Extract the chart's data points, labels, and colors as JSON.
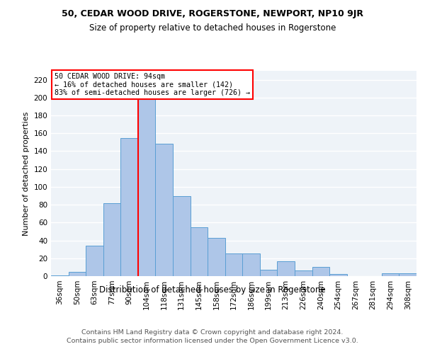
{
  "title1": "50, CEDAR WOOD DRIVE, ROGERSTONE, NEWPORT, NP10 9JR",
  "title2": "Size of property relative to detached houses in Rogerstone",
  "xlabel": "Distribution of detached houses by size in Rogerstone",
  "ylabel": "Number of detached properties",
  "footer1": "Contains HM Land Registry data © Crown copyright and database right 2024.",
  "footer2": "Contains public sector information licensed under the Open Government Licence v3.0.",
  "bin_labels": [
    "36sqm",
    "50sqm",
    "63sqm",
    "77sqm",
    "90sqm",
    "104sqm",
    "118sqm",
    "131sqm",
    "145sqm",
    "158sqm",
    "172sqm",
    "186sqm",
    "199sqm",
    "213sqm",
    "226sqm",
    "240sqm",
    "254sqm",
    "267sqm",
    "281sqm",
    "294sqm",
    "308sqm"
  ],
  "bar_values": [
    1,
    5,
    34,
    82,
    155,
    200,
    148,
    90,
    55,
    43,
    25,
    25,
    7,
    17,
    6,
    10,
    2,
    0,
    0,
    3,
    3
  ],
  "bar_color": "#aec6e8",
  "bar_edge_color": "#5a9fd4",
  "property_label": "50 CEDAR WOOD DRIVE: 94sqm",
  "annotation_line1": "← 16% of detached houses are smaller (142)",
  "annotation_line2": "83% of semi-detached houses are larger (726) →",
  "vline_x_index": 4.5,
  "annotation_box_color": "white",
  "annotation_box_edgecolor": "red",
  "vline_color": "red",
  "ylim": [
    0,
    230
  ],
  "background_color": "#eef3f8",
  "grid_color": "white"
}
